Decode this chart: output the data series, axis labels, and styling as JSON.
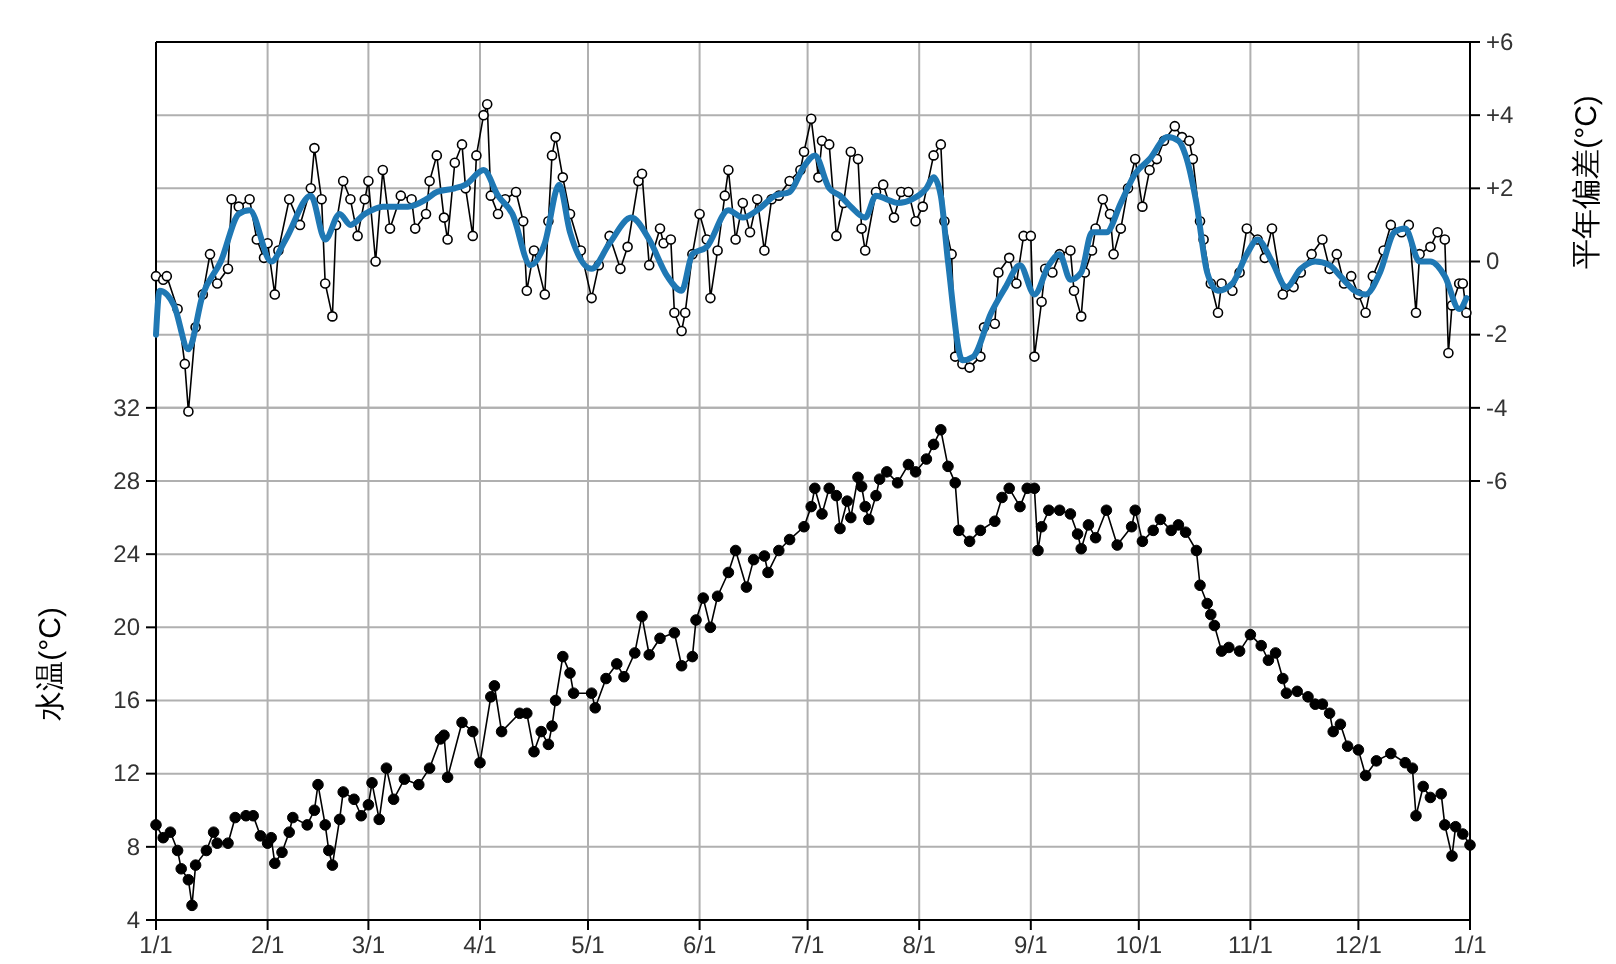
{
  "chart_data": {
    "type": "line",
    "ylabel": "水温(°C)",
    "y2label": "平年偏差(°C)",
    "xlim": [
      "--01-01",
      "--12-31T23:59"
    ],
    "xticks": [
      {
        "value": "--01-01",
        "label": "1/1"
      },
      {
        "value": "--02-01",
        "label": "2/1"
      },
      {
        "value": "--03-01",
        "label": "3/1"
      },
      {
        "value": "--04-01",
        "label": "4/1"
      },
      {
        "value": "--05-01",
        "label": "5/1"
      },
      {
        "value": "--06-01",
        "label": "6/1"
      },
      {
        "value": "--07-01",
        "label": "7/1"
      },
      {
        "value": "--08-01",
        "label": "8/1"
      },
      {
        "value": "--09-01",
        "label": "9/1"
      },
      {
        "value": "--10-01",
        "label": "10/1"
      },
      {
        "value": "--11-01",
        "label": "11/1"
      },
      {
        "value": "--12-01",
        "label": "12/1"
      },
      {
        "value": "--12-31T23:59",
        "label": "1/1"
      }
    ],
    "ylim": [
      4,
      52
    ],
    "yticks": [
      4,
      8,
      12,
      16,
      20,
      24,
      28,
      32
    ],
    "y2lim": [
      -18,
      6
    ],
    "y2ticks": [
      {
        "value": 6,
        "label": "+6"
      },
      {
        "value": 4,
        "label": "+4"
      },
      {
        "value": 2,
        "label": "+2"
      },
      0,
      -2,
      -4,
      -6
    ],
    "grid": true,
    "series": [
      {
        "color": "#000000",
        "marker": "circle",
        "axis": "y",
        "x": [
          "--01-01",
          "--01-03",
          "--01-05",
          "--01-07",
          "--01-08",
          "--01-10",
          "--01-11",
          "--01-12",
          "--01-15",
          "--01-17",
          "--01-18",
          "--01-21",
          "--01-23",
          "--01-26",
          "--01-28",
          "--01-30",
          "--02-01",
          "--02-02",
          "--02-03",
          "--02-05",
          "--02-07",
          "--02-08",
          "--02-12",
          "--02-14",
          "--02-15",
          "--02-17",
          "--02-18",
          "--02-19",
          "--02-21",
          "--02-22",
          "--02-25",
          "--02-27",
          "--03-01",
          "--03-02",
          "--03-04",
          "--03-06",
          "--03-08",
          "--03-11",
          "--03-15",
          "--03-18",
          "--03-21",
          "--03-22",
          "--03-23",
          "--03-27",
          "--03-30",
          "--04-01",
          "--04-04",
          "--04-05",
          "--04-07",
          "--04-12",
          "--04-14",
          "--04-16",
          "--04-18",
          "--04-20",
          "--04-21",
          "--04-22",
          "--04-24",
          "--04-26",
          "--04-27",
          "--05-02",
          "--05-03",
          "--05-06",
          "--05-09",
          "--05-11",
          "--05-14",
          "--05-16",
          "--05-18",
          "--05-21",
          "--05-25",
          "--05-27",
          "--05-30",
          "--05-31",
          "--06-02",
          "--06-04",
          "--06-06",
          "--06-09",
          "--06-11",
          "--06-14",
          "--06-16",
          "--06-19",
          "--06-20",
          "--06-23",
          "--06-26",
          "--06-30",
          "--07-02",
          "--07-03",
          "--07-05",
          "--07-07",
          "--07-09",
          "--07-10",
          "--07-12",
          "--07-13",
          "--07-15",
          "--07-16",
          "--07-17",
          "--07-18",
          "--07-20",
          "--07-21",
          "--07-23",
          "--07-26",
          "--07-29",
          "--07-31",
          "--08-03",
          "--08-05",
          "--08-07",
          "--08-09",
          "--08-11",
          "--08-12",
          "--08-15",
          "--08-18",
          "--08-22",
          "--08-24",
          "--08-26",
          "--08-29",
          "--08-31",
          "--09-02",
          "--09-03",
          "--09-04",
          "--09-06",
          "--09-09",
          "--09-12",
          "--09-14",
          "--09-15",
          "--09-17",
          "--09-19",
          "--09-22",
          "--09-25",
          "--09-29",
          "--09-30",
          "--10-02",
          "--10-05",
          "--10-07",
          "--10-10",
          "--10-12",
          "--10-14",
          "--10-17",
          "--10-18",
          "--10-20",
          "--10-21",
          "--10-22",
          "--10-24",
          "--10-26",
          "--10-29",
          "--11-01",
          "--11-04",
          "--11-06",
          "--11-08",
          "--11-10",
          "--11-11",
          "--11-14",
          "--11-17",
          "--11-19",
          "--11-21",
          "--11-23",
          "--11-24",
          "--11-26",
          "--11-28",
          "--12-01",
          "--12-03",
          "--12-06",
          "--12-10",
          "--12-14",
          "--12-16",
          "--12-17",
          "--12-19",
          "--12-21",
          "--12-24",
          "--12-25",
          "--12-27",
          "--12-28",
          "--12-30",
          "--12-31T23:59"
        ],
        "values": [
          9.2,
          8.5,
          8.8,
          7.8,
          6.8,
          6.2,
          4.8,
          7.0,
          7.8,
          8.8,
          8.2,
          8.2,
          9.6,
          9.7,
          9.7,
          8.6,
          8.2,
          8.5,
          7.1,
          7.7,
          8.8,
          9.6,
          9.2,
          10.0,
          11.4,
          9.2,
          7.8,
          7.0,
          9.5,
          11.0,
          10.6,
          9.7,
          10.3,
          11.5,
          9.5,
          12.3,
          10.6,
          11.7,
          11.4,
          12.3,
          13.9,
          14.1,
          11.8,
          14.8,
          14.3,
          12.6,
          16.2,
          16.8,
          14.3,
          15.3,
          15.3,
          13.2,
          14.3,
          13.6,
          14.6,
          16.0,
          18.4,
          17.5,
          16.4,
          16.4,
          15.6,
          17.2,
          18.0,
          17.3,
          18.6,
          20.6,
          18.5,
          19.4,
          19.7,
          17.9,
          18.4,
          20.4,
          21.6,
          20.0,
          21.7,
          23.0,
          24.2,
          22.2,
          23.7,
          23.9,
          23.0,
          24.2,
          24.8,
          25.5,
          26.6,
          27.6,
          26.2,
          27.6,
          27.2,
          25.4,
          26.9,
          26.0,
          28.2,
          27.7,
          26.6,
          25.9,
          27.2,
          28.1,
          28.5,
          27.9,
          28.9,
          28.5,
          29.2,
          30.0,
          30.8,
          28.8,
          27.9,
          25.3,
          24.7,
          25.3,
          25.8,
          27.1,
          27.6,
          26.6,
          27.6,
          27.6,
          24.2,
          25.5,
          26.4,
          26.4,
          26.2,
          25.1,
          24.3,
          25.6,
          24.9,
          26.4,
          24.5,
          25.5,
          26.4,
          24.7,
          25.3,
          25.9,
          25.3,
          25.6,
          25.2,
          24.2,
          22.3,
          21.3,
          20.7,
          20.1,
          18.7,
          18.9,
          18.7,
          19.6,
          19.0,
          18.2,
          18.6,
          17.2,
          16.4,
          16.5,
          16.2,
          15.8,
          15.8,
          15.3,
          14.3,
          14.7,
          13.5,
          13.3,
          11.9,
          12.7,
          13.1,
          12.6,
          12.3,
          9.7,
          11.3,
          10.7,
          10.9,
          9.2,
          7.5,
          9.1,
          8.7,
          8.1
        ]
      },
      {
        "color": "#000000",
        "marker": "circle",
        "axis": "y2",
        "x": [
          "--01-01",
          "--01-03",
          "--01-04",
          "--01-07",
          "--01-09",
          "--01-10",
          "--01-12",
          "--01-14",
          "--01-16",
          "--01-18",
          "--01-21",
          "--01-22",
          "--01-24",
          "--01-27",
          "--01-29",
          "--01-31",
          "--02-01",
          "--02-03",
          "--02-04",
          "--02-07",
          "--02-10",
          "--02-13",
          "--02-14",
          "--02-16",
          "--02-17",
          "--02-19",
          "--02-20",
          "--02-22",
          "--02-24",
          "--02-26",
          "--02-28",
          "--03-01",
          "--03-03",
          "--03-05",
          "--03-07",
          "--03-10",
          "--03-13",
          "--03-14",
          "--03-17",
          "--03-18",
          "--03-20",
          "--03-22",
          "--03-23",
          "--03-25",
          "--03-27",
          "--03-28",
          "--03-30",
          "--03-31",
          "--04-02",
          "--04-03",
          "--04-04",
          "--04-06",
          "--04-08",
          "--04-11",
          "--04-13",
          "--04-14",
          "--04-16",
          "--04-19",
          "--04-20",
          "--04-21",
          "--04-22",
          "--04-24",
          "--04-26",
          "--04-29",
          "--05-02",
          "--05-04",
          "--05-07",
          "--05-10",
          "--05-12",
          "--05-15",
          "--05-16",
          "--05-18",
          "--05-21",
          "--05-22",
          "--05-24",
          "--05-25",
          "--05-27",
          "--05-28",
          "--05-30",
          "--06-01",
          "--06-03",
          "--06-04",
          "--06-06",
          "--06-08",
          "--06-09",
          "--06-11",
          "--06-13",
          "--06-15",
          "--06-17",
          "--06-19",
          "--06-21",
          "--06-23",
          "--06-26",
          "--06-29",
          "--06-30",
          "--07-02",
          "--07-04",
          "--07-05",
          "--07-07",
          "--07-09",
          "--07-11",
          "--07-13",
          "--07-15",
          "--07-16",
          "--07-17",
          "--07-20",
          "--07-22",
          "--07-25",
          "--07-27",
          "--07-29",
          "--07-31",
          "--08-02",
          "--08-05",
          "--08-07",
          "--08-08",
          "--08-10",
          "--08-11",
          "--08-13",
          "--08-15",
          "--08-18",
          "--08-19",
          "--08-22",
          "--08-23",
          "--08-26",
          "--08-28",
          "--08-30",
          "--09-01",
          "--09-02",
          "--09-04",
          "--09-05",
          "--09-07",
          "--09-09",
          "--09-12",
          "--09-13",
          "--09-15",
          "--09-16",
          "--09-18",
          "--09-19",
          "--09-21",
          "--09-23",
          "--09-24",
          "--09-26",
          "--09-28",
          "--09-30",
          "--10-02",
          "--10-04",
          "--10-06",
          "--10-08",
          "--10-11",
          "--10-13",
          "--10-15",
          "--10-16",
          "--10-18",
          "--10-19",
          "--10-21",
          "--10-23",
          "--10-24",
          "--10-27",
          "--10-29",
          "--10-31",
          "--11-03",
          "--11-05",
          "--11-07",
          "--11-10",
          "--11-13",
          "--11-15",
          "--11-18",
          "--11-21",
          "--11-23",
          "--11-25",
          "--11-27",
          "--11-29",
          "--12-01",
          "--12-03",
          "--12-05",
          "--12-08",
          "--12-10",
          "--12-13",
          "--12-15",
          "--12-17",
          "--12-18",
          "--12-21",
          "--12-23",
          "--12-25",
          "--12-26",
          "--12-27",
          "--12-29",
          "--12-30",
          "--12-31"
        ],
        "values": [
          -0.4,
          -0.5,
          -0.4,
          -1.3,
          -2.8,
          -4.1,
          -1.8,
          -0.9,
          0.2,
          -0.6,
          -0.2,
          1.7,
          1.5,
          1.7,
          0.6,
          0.1,
          0.5,
          -0.9,
          0.3,
          1.7,
          1.0,
          2.0,
          3.1,
          1.7,
          -0.6,
          -1.5,
          1.0,
          2.2,
          1.7,
          0.7,
          1.7,
          2.2,
          0.0,
          2.5,
          0.9,
          1.8,
          1.7,
          0.9,
          1.3,
          2.2,
          2.9,
          1.2,
          0.6,
          2.7,
          3.2,
          2.0,
          0.7,
          2.9,
          4.0,
          4.3,
          1.8,
          1.3,
          1.7,
          1.9,
          1.1,
          -0.8,
          0.3,
          -0.9,
          1.1,
          2.9,
          3.4,
          2.3,
          1.3,
          0.3,
          -1.0,
          -0.1,
          0.7,
          -0.2,
          0.4,
          2.2,
          2.4,
          -0.1,
          0.9,
          0.5,
          0.6,
          -1.4,
          -1.9,
          -1.4,
          0.2,
          1.3,
          0.6,
          -1.0,
          0.3,
          1.8,
          2.5,
          0.6,
          1.6,
          0.8,
          1.7,
          0.3,
          1.7,
          1.8,
          2.2,
          2.5,
          3.0,
          3.9,
          2.3,
          3.3,
          3.2,
          0.7,
          1.6,
          3.0,
          2.8,
          0.9,
          0.3,
          1.9,
          2.1,
          1.2,
          1.9,
          1.9,
          1.1,
          1.5,
          2.9,
          3.2,
          1.1,
          0.2,
          -2.6,
          -2.8,
          -2.9,
          -2.6,
          -1.8,
          -1.7,
          -0.3,
          0.1,
          -0.6,
          0.7,
          0.7,
          -2.6,
          -1.1,
          -0.2,
          -0.3,
          0.2,
          0.3,
          -0.8,
          -1.5,
          -0.3,
          0.3,
          0.9,
          1.7,
          1.3,
          0.2,
          0.9,
          2.0,
          2.8,
          1.5,
          2.5,
          2.8,
          3.3,
          3.7,
          3.4,
          3.3,
          2.8,
          1.1,
          0.6,
          -0.6,
          -1.4,
          -0.6,
          -0.8,
          -0.3,
          0.9,
          0.6,
          0.1,
          0.9,
          -0.9,
          -0.7,
          -0.3,
          0.2,
          0.6,
          -0.2,
          0.2,
          -0.6,
          -0.4,
          -0.9,
          -1.4,
          -0.4,
          0.3,
          1.0,
          0.8,
          1.0,
          -1.4,
          0.2,
          0.4,
          0.8,
          0.6,
          -2.5,
          -1.2,
          -0.6,
          -0.6,
          -1.4
        ]
      },
      {
        "color": "#1f78b4",
        "marker": "none",
        "axis": "y2",
        "x": [
          "--01-01",
          "--01-02",
          "--01-06",
          "--01-10",
          "--01-14",
          "--01-19",
          "--01-24",
          "--01-27",
          "--02-02",
          "--02-06",
          "--02-13",
          "--02-17",
          "--02-21",
          "--02-24",
          "--02-28",
          "--03-05",
          "--03-12",
          "--03-17",
          "--03-20",
          "--03-25",
          "--03-28",
          "--04-02",
          "--04-06",
          "--04-10",
          "--04-15",
          "--04-19",
          "--04-23",
          "--04-26",
          "--05-02",
          "--05-07",
          "--05-13",
          "--05-18",
          "--05-23",
          "--05-27",
          "--05-30",
          "--06-03",
          "--06-09",
          "--06-13",
          "--06-17",
          "--06-22",
          "--06-26",
          "--06-30",
          "--07-03",
          "--07-07",
          "--07-10",
          "--07-13",
          "--07-17",
          "--07-20",
          "--07-23",
          "--07-26",
          "--07-30",
          "--08-03",
          "--08-05",
          "--08-07",
          "--08-09",
          "--08-13",
          "--08-16",
          "--08-21",
          "--08-25",
          "--08-29",
          "--09-02",
          "--09-06",
          "--09-09",
          "--09-12",
          "--09-15",
          "--09-18",
          "--09-22",
          "--09-26",
          "--09-30",
          "--10-04",
          "--10-09",
          "--10-12",
          "--10-14",
          "--10-17",
          "--10-20",
          "--10-23",
          "--10-27",
          "--10-31",
          "--11-03",
          "--11-07",
          "--11-11",
          "--11-15",
          "--11-19",
          "--11-23",
          "--11-26",
          "--11-30",
          "--12-03",
          "--12-07",
          "--12-11",
          "--12-14",
          "--12-18",
          "--12-21",
          "--12-25",
          "--12-29",
          "--12-31"
        ],
        "values": [
          -2.0,
          -0.8,
          -1.2,
          -2.4,
          -0.9,
          0.0,
          1.3,
          1.4,
          0.0,
          0.6,
          1.8,
          0.6,
          1.3,
          1.0,
          1.3,
          1.5,
          1.5,
          1.7,
          1.9,
          2.0,
          2.1,
          2.5,
          1.8,
          1.3,
          -0.1,
          0.5,
          2.1,
          0.8,
          -0.2,
          0.5,
          1.2,
          0.6,
          -0.4,
          -0.8,
          0.2,
          0.4,
          1.4,
          1.2,
          1.4,
          1.8,
          1.9,
          2.6,
          2.9,
          2.0,
          1.8,
          1.5,
          1.2,
          1.8,
          1.7,
          1.6,
          1.7,
          2.0,
          2.3,
          1.8,
          0.0,
          -2.7,
          -2.6,
          -1.4,
          -0.7,
          -0.1,
          -0.9,
          -0.1,
          0.2,
          -0.5,
          -0.3,
          0.8,
          0.8,
          1.6,
          2.4,
          2.8,
          3.4,
          3.3,
          2.9,
          1.6,
          -0.3,
          -0.8,
          -0.6,
          0.2,
          0.6,
          0.0,
          -0.7,
          -0.2,
          0.0,
          -0.1,
          -0.4,
          -0.8,
          -0.9,
          -0.3,
          0.8,
          0.9,
          0.0,
          0.0,
          -0.4,
          -1.3,
          -1.0
        ]
      }
    ]
  }
}
